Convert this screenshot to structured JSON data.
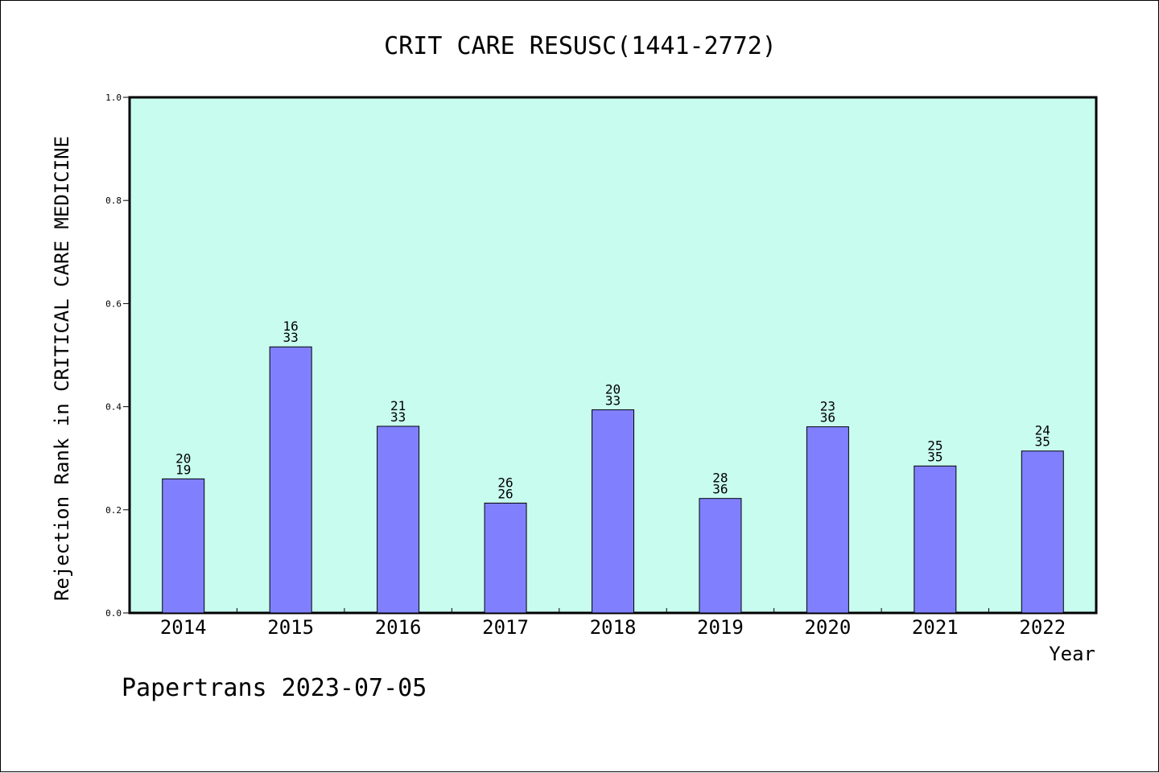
{
  "chart_data": {
    "type": "bar",
    "title": "CRIT CARE RESUSC(1441-2772)",
    "ylabel": "Rejection Rank in CRITICAL CARE MEDICINE",
    "xlabel": "Year",
    "footer": "Papertrans 2023-07-05",
    "categories": [
      "2014",
      "2015",
      "2016",
      "2017",
      "2018",
      "2019",
      "2020",
      "2021",
      "2022"
    ],
    "values": [
      0.26,
      0.516,
      0.362,
      0.213,
      0.394,
      0.222,
      0.361,
      0.285,
      0.314
    ],
    "bar_labels": [
      {
        "top": "20",
        "bottom": "19"
      },
      {
        "top": "16",
        "bottom": "33"
      },
      {
        "top": "21",
        "bottom": "33"
      },
      {
        "top": "26",
        "bottom": "26"
      },
      {
        "top": "20",
        "bottom": "33"
      },
      {
        "top": "28",
        "bottom": "36"
      },
      {
        "top": "23",
        "bottom": "36"
      },
      {
        "top": "25",
        "bottom": "35"
      },
      {
        "top": "24",
        "bottom": "35"
      }
    ],
    "ylim": [
      0,
      1.0
    ],
    "yticks": [
      "0.0",
      "0.2",
      "0.4",
      "0.6",
      "0.8",
      "1.0"
    ],
    "grid": false,
    "colors": {
      "plot_background": "#c8fcef",
      "bar_fill": "#8080ff",
      "bar_stroke": "#000000",
      "text": "#000000"
    }
  }
}
